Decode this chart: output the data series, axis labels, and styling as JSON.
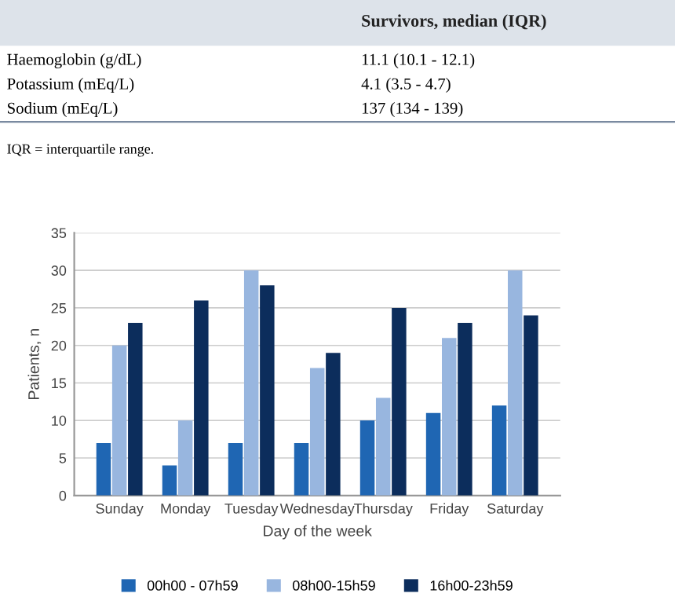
{
  "chart_data": [
    {
      "type": "other",
      "title": "Survivors, median (IQR)",
      "annotations": [
        "Haemoglobin (g/dL)",
        "11.1 (10.1 - 12.1)",
        "Potassium (mEq/L)",
        "4.1 (3.5 - 4.7)",
        "Sodium (mEq/L)",
        "137 (134 - 139)",
        "IQR = interquartile range."
      ]
    },
    {
      "type": "bar",
      "xlabel": "Day of the week",
      "ylabel": "Patients, n",
      "categories": [
        "Sunday",
        "Monday",
        "Tuesday",
        "Wednesday",
        "Thursday",
        "Friday",
        "Saturday"
      ],
      "series": [
        {
          "name": "00h00 - 07h59",
          "color": "#1f66b3",
          "values": [
            7,
            4,
            7,
            7,
            10,
            11,
            12
          ]
        },
        {
          "name": "08h00-15h59",
          "color": "#98b6df",
          "values": [
            20,
            10,
            30,
            17,
            13,
            21,
            30
          ]
        },
        {
          "name": "16h00-23h59",
          "color": "#0c2d5c",
          "values": [
            23,
            26,
            28,
            19,
            25,
            23,
            24
          ]
        }
      ],
      "ylim": [
        0,
        35
      ],
      "yticks": [
        0,
        5,
        10,
        15,
        20,
        25,
        30,
        35
      ],
      "grid": "y",
      "legend": "bottom"
    }
  ]
}
